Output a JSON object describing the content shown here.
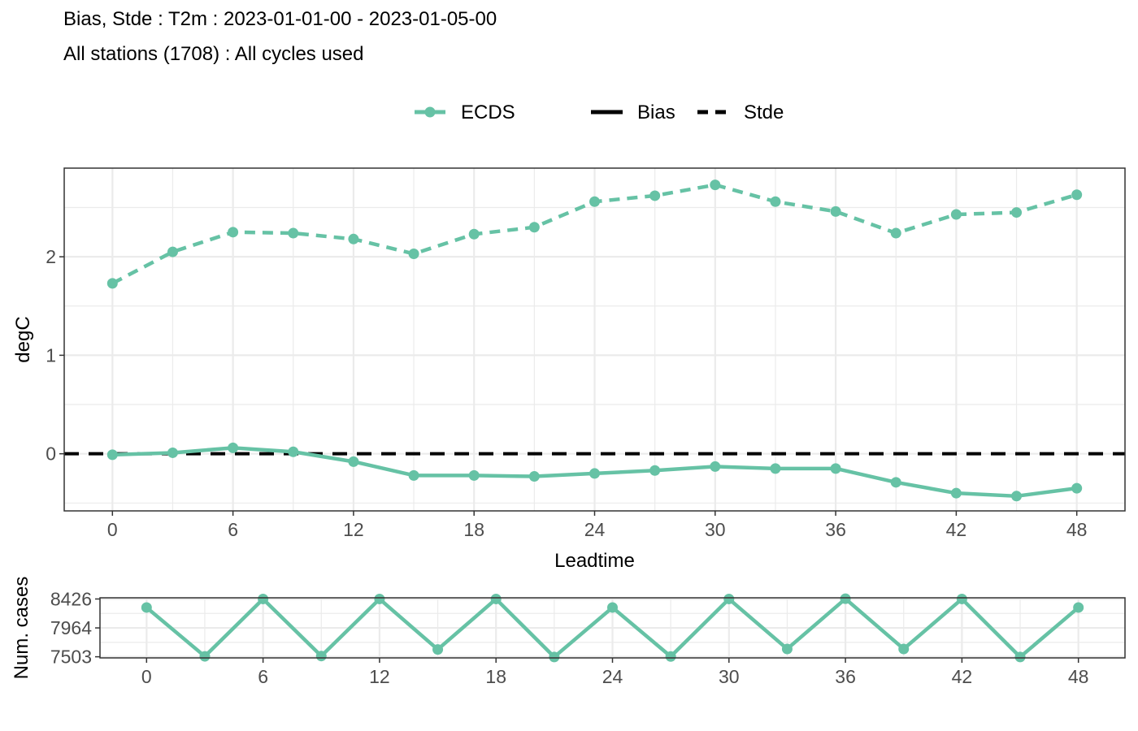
{
  "header": {
    "title": "Bias, Stde : T2m : 2023-01-01-00 - 2023-01-05-00",
    "subtitle": "All stations (1708) : All cycles used"
  },
  "legend": {
    "model_label": "ECDS",
    "bias_label": "Bias",
    "stde_label": "Stde"
  },
  "colors": {
    "series": "#66c2a5",
    "zero_line": "#000000",
    "grid": "#ebebeb",
    "panel_border": "#333333",
    "tick_text": "#4d4d4d"
  },
  "chart_data": [
    {
      "type": "line",
      "title": "Bias, Stde : T2m : 2023-01-01-00 - 2023-01-05-00",
      "xlabel": "Leadtime",
      "ylabel": "degC",
      "x": [
        0,
        3,
        6,
        9,
        12,
        15,
        18,
        21,
        24,
        27,
        30,
        33,
        36,
        39,
        42,
        45,
        48
      ],
      "xlim": [
        -2.4,
        50.4
      ],
      "ylim": [
        -0.58,
        2.9
      ],
      "x_ticks": [
        0,
        6,
        12,
        18,
        24,
        30,
        36,
        42,
        48
      ],
      "y_ticks": [
        0,
        1,
        2
      ],
      "grid": true,
      "legend_position": "top",
      "series": [
        {
          "name": "ECDS",
          "metric": "Bias",
          "linestyle": "solid",
          "values": [
            -0.01,
            0.01,
            0.06,
            0.02,
            -0.08,
            -0.22,
            -0.22,
            -0.23,
            -0.2,
            -0.17,
            -0.13,
            -0.15,
            -0.15,
            -0.29,
            -0.4,
            -0.43,
            -0.35
          ]
        },
        {
          "name": "ECDS",
          "metric": "Stde",
          "linestyle": "dashed",
          "values": [
            1.73,
            2.05,
            2.25,
            2.24,
            2.18,
            2.03,
            2.23,
            2.3,
            2.56,
            2.62,
            2.73,
            2.56,
            2.46,
            2.24,
            2.43,
            2.45,
            2.63
          ]
        }
      ],
      "reference_line": {
        "y": 0,
        "linestyle": "dashed"
      }
    },
    {
      "type": "line",
      "title": "",
      "xlabel": "",
      "ylabel": "Num. cases",
      "x": [
        0,
        3,
        6,
        9,
        12,
        15,
        18,
        21,
        24,
        27,
        30,
        33,
        36,
        39,
        42,
        45,
        48
      ],
      "xlim": [
        -2.4,
        50.4
      ],
      "ylim": [
        7485,
        8445
      ],
      "x_ticks": [
        0,
        6,
        12,
        18,
        24,
        30,
        36,
        42,
        48
      ],
      "y_ticks": [
        7503,
        7964,
        8426
      ],
      "grid": true,
      "series": [
        {
          "name": "ECDS",
          "values": [
            8290,
            7510,
            8426,
            7515,
            8426,
            7620,
            8426,
            7500,
            8290,
            7508,
            8426,
            7628,
            8430,
            7628,
            8426,
            7500,
            8290
          ]
        }
      ]
    }
  ]
}
